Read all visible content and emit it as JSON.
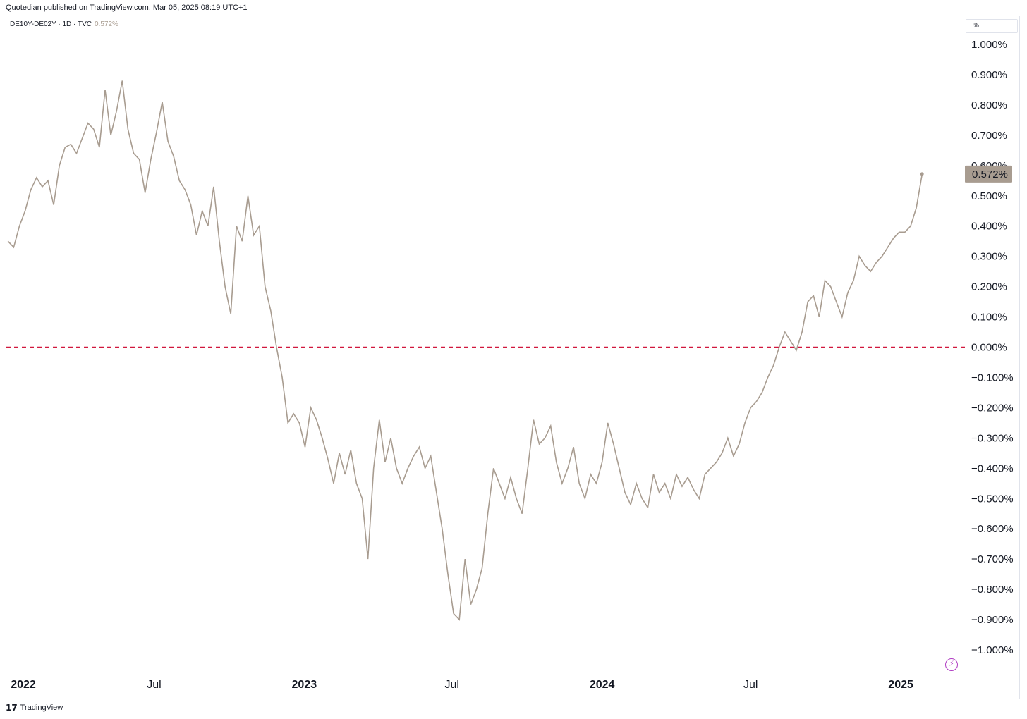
{
  "header": {
    "publisher_line": "Quotedian published on TradingView.com, Mar 05, 2025 08:19 UTC+1"
  },
  "legend": {
    "symbol": "DE10Y-DE02Y · 1D · TVC",
    "value": "0.572%"
  },
  "unit_selector": {
    "label": "%"
  },
  "footer": {
    "brand": "TradingView",
    "logo_icon": "tradingview-logo-icon"
  },
  "colors": {
    "series": "#a89c90",
    "zero_line": "#d1183e",
    "last_badge": "#a89c90"
  },
  "chart_data": {
    "type": "line",
    "series": [
      {
        "values": [
          [
            "2022-01-03",
            0.35
          ],
          [
            "2022-01-10",
            0.33
          ],
          [
            "2022-01-17",
            0.4
          ],
          [
            "2022-01-24",
            0.45
          ],
          [
            "2022-01-31",
            0.52
          ],
          [
            "2022-02-07",
            0.56
          ],
          [
            "2022-02-14",
            0.53
          ],
          [
            "2022-02-21",
            0.55
          ],
          [
            "2022-02-28",
            0.47
          ],
          [
            "2022-03-07",
            0.6
          ],
          [
            "2022-03-14",
            0.66
          ],
          [
            "2022-03-21",
            0.67
          ],
          [
            "2022-03-28",
            0.64
          ],
          [
            "2022-04-04",
            0.69
          ],
          [
            "2022-04-11",
            0.74
          ],
          [
            "2022-04-18",
            0.72
          ],
          [
            "2022-04-25",
            0.66
          ],
          [
            "2022-05-02",
            0.85
          ],
          [
            "2022-05-09",
            0.7
          ],
          [
            "2022-05-16",
            0.78
          ],
          [
            "2022-05-23",
            0.88
          ],
          [
            "2022-05-30",
            0.72
          ],
          [
            "2022-06-06",
            0.64
          ],
          [
            "2022-06-13",
            0.62
          ],
          [
            "2022-06-20",
            0.51
          ],
          [
            "2022-06-27",
            0.62
          ],
          [
            "2022-07-04",
            0.71
          ],
          [
            "2022-07-11",
            0.81
          ],
          [
            "2022-07-18",
            0.68
          ],
          [
            "2022-07-25",
            0.63
          ],
          [
            "2022-08-01",
            0.55
          ],
          [
            "2022-08-08",
            0.52
          ],
          [
            "2022-08-15",
            0.47
          ],
          [
            "2022-08-22",
            0.37
          ],
          [
            "2022-08-29",
            0.45
          ],
          [
            "2022-09-05",
            0.4
          ],
          [
            "2022-09-12",
            0.53
          ],
          [
            "2022-09-19",
            0.35
          ],
          [
            "2022-09-26",
            0.2
          ],
          [
            "2022-10-03",
            0.11
          ],
          [
            "2022-10-10",
            0.4
          ],
          [
            "2022-10-17",
            0.35
          ],
          [
            "2022-10-24",
            0.5
          ],
          [
            "2022-10-31",
            0.37
          ],
          [
            "2022-11-07",
            0.4
          ],
          [
            "2022-11-14",
            0.2
          ],
          [
            "2022-11-21",
            0.12
          ],
          [
            "2022-11-28",
            0.0
          ],
          [
            "2022-12-05",
            -0.1
          ],
          [
            "2022-12-12",
            -0.25
          ],
          [
            "2022-12-19",
            -0.22
          ],
          [
            "2022-12-26",
            -0.25
          ],
          [
            "2023-01-02",
            -0.33
          ],
          [
            "2023-01-09",
            -0.2
          ],
          [
            "2023-01-16",
            -0.24
          ],
          [
            "2023-01-23",
            -0.3
          ],
          [
            "2023-01-30",
            -0.37
          ],
          [
            "2023-02-06",
            -0.45
          ],
          [
            "2023-02-13",
            -0.35
          ],
          [
            "2023-02-20",
            -0.42
          ],
          [
            "2023-02-27",
            -0.34
          ],
          [
            "2023-03-06",
            -0.45
          ],
          [
            "2023-03-13",
            -0.5
          ],
          [
            "2023-03-20",
            -0.7
          ],
          [
            "2023-03-27",
            -0.4
          ],
          [
            "2023-04-03",
            -0.24
          ],
          [
            "2023-04-10",
            -0.38
          ],
          [
            "2023-04-17",
            -0.3
          ],
          [
            "2023-04-24",
            -0.4
          ],
          [
            "2023-05-01",
            -0.45
          ],
          [
            "2023-05-08",
            -0.4
          ],
          [
            "2023-05-15",
            -0.36
          ],
          [
            "2023-05-22",
            -0.33
          ],
          [
            "2023-05-29",
            -0.4
          ],
          [
            "2023-06-05",
            -0.36
          ],
          [
            "2023-06-12",
            -0.48
          ],
          [
            "2023-06-19",
            -0.6
          ],
          [
            "2023-06-26",
            -0.75
          ],
          [
            "2023-07-03",
            -0.88
          ],
          [
            "2023-07-10",
            -0.9
          ],
          [
            "2023-07-17",
            -0.7
          ],
          [
            "2023-07-24",
            -0.85
          ],
          [
            "2023-07-31",
            -0.8
          ],
          [
            "2023-08-07",
            -0.73
          ],
          [
            "2023-08-14",
            -0.55
          ],
          [
            "2023-08-21",
            -0.4
          ],
          [
            "2023-08-28",
            -0.45
          ],
          [
            "2023-09-04",
            -0.5
          ],
          [
            "2023-09-11",
            -0.43
          ],
          [
            "2023-09-18",
            -0.5
          ],
          [
            "2023-09-25",
            -0.55
          ],
          [
            "2023-10-02",
            -0.4
          ],
          [
            "2023-10-09",
            -0.24
          ],
          [
            "2023-10-16",
            -0.32
          ],
          [
            "2023-10-23",
            -0.3
          ],
          [
            "2023-10-30",
            -0.26
          ],
          [
            "2023-11-06",
            -0.38
          ],
          [
            "2023-11-13",
            -0.45
          ],
          [
            "2023-11-20",
            -0.4
          ],
          [
            "2023-11-27",
            -0.33
          ],
          [
            "2023-12-04",
            -0.45
          ],
          [
            "2023-12-11",
            -0.5
          ],
          [
            "2023-12-18",
            -0.42
          ],
          [
            "2023-12-25",
            -0.45
          ],
          [
            "2024-01-01",
            -0.38
          ],
          [
            "2024-01-08",
            -0.25
          ],
          [
            "2024-01-15",
            -0.32
          ],
          [
            "2024-01-22",
            -0.4
          ],
          [
            "2024-01-29",
            -0.48
          ],
          [
            "2024-02-05",
            -0.52
          ],
          [
            "2024-02-12",
            -0.45
          ],
          [
            "2024-02-19",
            -0.5
          ],
          [
            "2024-02-26",
            -0.53
          ],
          [
            "2024-03-04",
            -0.42
          ],
          [
            "2024-03-11",
            -0.48
          ],
          [
            "2024-03-18",
            -0.45
          ],
          [
            "2024-03-25",
            -0.5
          ],
          [
            "2024-04-01",
            -0.42
          ],
          [
            "2024-04-08",
            -0.46
          ],
          [
            "2024-04-15",
            -0.43
          ],
          [
            "2024-04-22",
            -0.47
          ],
          [
            "2024-04-29",
            -0.5
          ],
          [
            "2024-05-06",
            -0.42
          ],
          [
            "2024-05-13",
            -0.4
          ],
          [
            "2024-05-20",
            -0.38
          ],
          [
            "2024-05-27",
            -0.35
          ],
          [
            "2024-06-03",
            -0.3
          ],
          [
            "2024-06-10",
            -0.36
          ],
          [
            "2024-06-17",
            -0.32
          ],
          [
            "2024-06-24",
            -0.25
          ],
          [
            "2024-07-01",
            -0.2
          ],
          [
            "2024-07-08",
            -0.18
          ],
          [
            "2024-07-15",
            -0.15
          ],
          [
            "2024-07-22",
            -0.1
          ],
          [
            "2024-07-29",
            -0.06
          ],
          [
            "2024-08-05",
            0.0
          ],
          [
            "2024-08-12",
            0.05
          ],
          [
            "2024-08-19",
            0.02
          ],
          [
            "2024-08-26",
            -0.01
          ],
          [
            "2024-09-02",
            0.05
          ],
          [
            "2024-09-09",
            0.15
          ],
          [
            "2024-09-16",
            0.17
          ],
          [
            "2024-09-23",
            0.1
          ],
          [
            "2024-09-30",
            0.22
          ],
          [
            "2024-10-07",
            0.2
          ],
          [
            "2024-10-14",
            0.15
          ],
          [
            "2024-10-21",
            0.1
          ],
          [
            "2024-10-28",
            0.18
          ],
          [
            "2024-11-04",
            0.22
          ],
          [
            "2024-11-11",
            0.3
          ],
          [
            "2024-11-18",
            0.27
          ],
          [
            "2024-11-25",
            0.25
          ],
          [
            "2024-12-02",
            0.28
          ],
          [
            "2024-12-09",
            0.3
          ],
          [
            "2024-12-16",
            0.33
          ],
          [
            "2024-12-23",
            0.36
          ],
          [
            "2024-12-30",
            0.38
          ],
          [
            "2025-01-06",
            0.38
          ],
          [
            "2025-01-13",
            0.4
          ],
          [
            "2025-01-20",
            0.46
          ],
          [
            "2025-01-27",
            0.57
          ]
        ]
      }
    ],
    "x_range": [
      "2022-01-01",
      "2025-03-05"
    ],
    "y_range": [
      -1.05,
      1.05
    ],
    "y_ticks": [
      1.0,
      0.9,
      0.8,
      0.7,
      0.6,
      0.5,
      0.4,
      0.3,
      0.2,
      0.1,
      0.0,
      -0.1,
      -0.2,
      -0.3,
      -0.4,
      -0.5,
      -0.6,
      -0.7,
      -0.8,
      -0.9,
      -1.0
    ],
    "y_tick_labels": [
      "1.000%",
      "0.900%",
      "0.800%",
      "0.700%",
      "0.600%",
      "0.500%",
      "0.400%",
      "0.300%",
      "0.200%",
      "0.100%",
      "0.000%",
      "−0.100%",
      "−0.200%",
      "−0.300%",
      "−0.400%",
      "−0.500%",
      "−0.600%",
      "−0.700%",
      "−0.800%",
      "−0.900%",
      "−1.000%"
    ],
    "x_ticks": [
      {
        "date": "2022-01-01",
        "label": "2022",
        "bold": true
      },
      {
        "date": "2022-07-01",
        "label": "Jul",
        "bold": false
      },
      {
        "date": "2023-01-01",
        "label": "2023",
        "bold": true
      },
      {
        "date": "2023-07-01",
        "label": "Jul",
        "bold": false
      },
      {
        "date": "2024-01-01",
        "label": "2024",
        "bold": true
      },
      {
        "date": "2024-07-01",
        "label": "Jul",
        "bold": false
      },
      {
        "date": "2025-01-01",
        "label": "2025",
        "bold": true
      }
    ],
    "reference_line": {
      "y": 0.0,
      "style": "dashed"
    },
    "last_value": 0.572,
    "last_value_label": "0.572%",
    "grid": false
  }
}
